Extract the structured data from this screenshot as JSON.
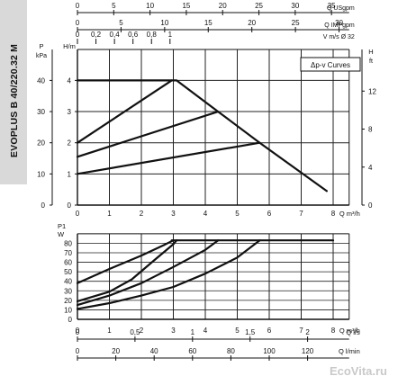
{
  "model_label": "EVOPLUS B 40/220.32 M",
  "watermark": "EcoVita.ru",
  "colors": {
    "ink": "#111111",
    "grid": "#222222",
    "strip": "#d9d9d9"
  },
  "top_axes": [
    {
      "label": "Q USgpm",
      "ticks": [
        "0",
        "5",
        "10",
        "15",
        "20",
        "25",
        "30",
        "35"
      ],
      "values": [
        0,
        5,
        10,
        15,
        20,
        25,
        30,
        35
      ],
      "m3h_per_unit": 0.2271
    },
    {
      "label": "Q IMPgpm",
      "ticks": [
        "0",
        "5",
        "10",
        "15",
        "20",
        "25",
        "30"
      ],
      "values": [
        0,
        5,
        10,
        15,
        20,
        25,
        30
      ],
      "m3h_per_unit": 0.2728
    },
    {
      "label": "V m/s Ø 32",
      "ticks": [
        "0",
        "0,2",
        "0,4",
        "0,6",
        "0,8",
        "1"
      ],
      "values": [
        0,
        0.2,
        0.4,
        0.6,
        0.8,
        1.0
      ],
      "m3h_per_unit": 2.896
    }
  ],
  "bottom_axes": [
    {
      "label": "Q m³/h",
      "ticks": [
        "0",
        "1",
        "2",
        "3",
        "4",
        "5",
        "6",
        "7",
        "8"
      ],
      "values": [
        0,
        1,
        2,
        3,
        4,
        5,
        6,
        7,
        8
      ],
      "m3h_per_unit": 1
    },
    {
      "label": "Q l/s",
      "ticks": [
        "0",
        "0,5",
        "1",
        "1,5",
        "2"
      ],
      "values": [
        0,
        0.5,
        1,
        1.5,
        2
      ],
      "m3h_per_unit": 3.6
    },
    {
      "label": "Q l/min",
      "ticks": [
        "0",
        "20",
        "40",
        "60",
        "80",
        "100",
        "120"
      ],
      "values": [
        0,
        20,
        40,
        60,
        80,
        100,
        120
      ],
      "m3h_per_unit": 0.06
    }
  ],
  "chart_data": [
    {
      "type": "line",
      "legend": "Δp-v Curves",
      "xlabel": "Q m³/h",
      "xlim": [
        0,
        8.5
      ],
      "ylim": [
        0,
        5
      ],
      "x_ticks": [
        0,
        1,
        2,
        3,
        4,
        5,
        6,
        7,
        8
      ],
      "y_axes": [
        {
          "label": "H/m",
          "ticks": [
            "0",
            "1",
            "2",
            "3",
            "4"
          ],
          "values": [
            0,
            1,
            2,
            3,
            4
          ],
          "scale": 1
        },
        {
          "label": "P kPa",
          "ticks": [
            "0",
            "10",
            "20",
            "30",
            "40"
          ],
          "values": [
            0,
            10,
            20,
            30,
            40
          ],
          "scale": 0.1
        },
        {
          "label": "H ft",
          "ticks": [
            "0",
            "4",
            "8",
            "12"
          ],
          "values": [
            0,
            4,
            8,
            12
          ],
          "scale": 0.3048
        }
      ],
      "series": [
        {
          "points": [
            [
              0,
              2.0
            ],
            [
              2.95,
              4.0
            ]
          ]
        },
        {
          "points": [
            [
              0,
              1.55
            ],
            [
              4.4,
              3.0
            ]
          ]
        },
        {
          "points": [
            [
              0,
              1.0
            ],
            [
              5.7,
              2.0
            ]
          ]
        },
        {
          "points": [
            [
              0,
              4.0
            ],
            [
              3.1,
              4.0
            ],
            [
              4.4,
              3.0
            ],
            [
              5.7,
              2.0
            ],
            [
              7.8,
              0.45
            ]
          ]
        }
      ]
    },
    {
      "type": "line",
      "xlabel": "Q m³/h",
      "ylabel": "P1 W",
      "xlim": [
        0,
        8.5
      ],
      "ylim": [
        0,
        90
      ],
      "x_ticks": [
        0,
        1,
        2,
        3,
        4,
        5,
        6,
        7,
        8
      ],
      "y_ticks": [
        0,
        10,
        20,
        30,
        40,
        50,
        60,
        70,
        80
      ],
      "series": [
        {
          "points": [
            [
              0,
              38
            ],
            [
              1,
              53
            ],
            [
              2,
              67
            ],
            [
              2.7,
              78
            ],
            [
              3.0,
              83
            ]
          ]
        },
        {
          "points": [
            [
              0,
              19
            ],
            [
              1,
              29
            ],
            [
              1.7,
              42
            ],
            [
              2.4,
              62
            ],
            [
              3.0,
              79
            ],
            [
              3.1,
              83
            ]
          ]
        },
        {
          "points": [
            [
              0,
              15
            ],
            [
              1,
              25
            ],
            [
              2,
              38
            ],
            [
              3,
              55
            ],
            [
              4,
              73
            ],
            [
              4.4,
              83
            ]
          ]
        },
        {
          "points": [
            [
              0,
              11
            ],
            [
              1,
              17
            ],
            [
              2,
              25
            ],
            [
              3,
              34
            ],
            [
              4,
              48
            ],
            [
              5,
              65
            ],
            [
              5.7,
              83
            ]
          ]
        },
        {
          "points": [
            [
              2.95,
              83
            ],
            [
              8.0,
              83
            ]
          ]
        }
      ]
    }
  ]
}
